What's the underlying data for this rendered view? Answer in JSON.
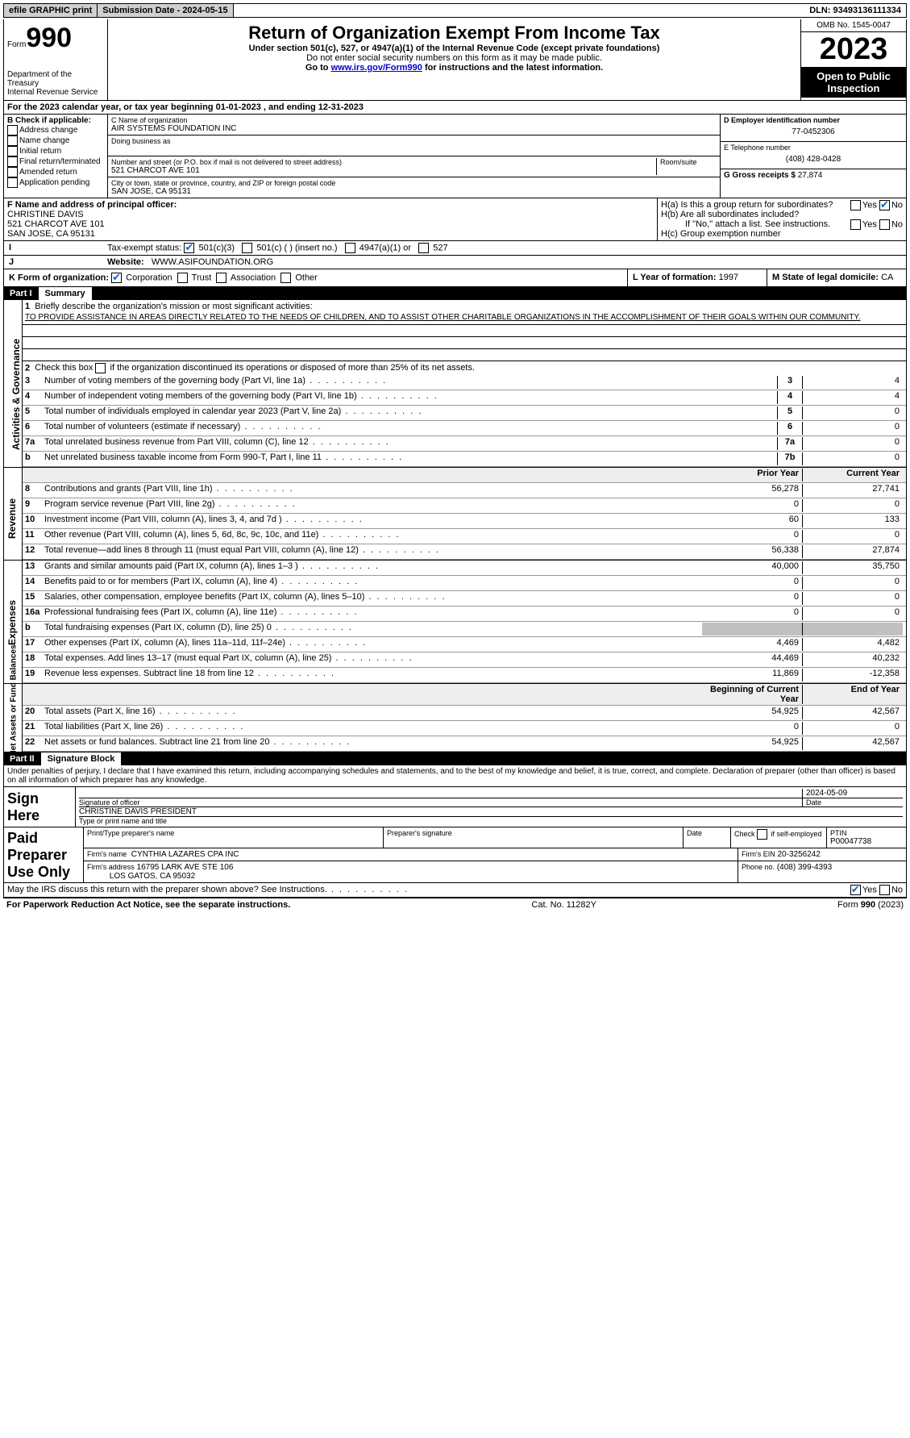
{
  "topbar": {
    "efile": "efile GRAPHIC print",
    "submission_label": "Submission Date - 2024-05-15",
    "dln": "DLN: 93493136111334"
  },
  "header": {
    "form_prefix": "Form",
    "form_number": "990",
    "dept": "Department of the Treasury",
    "irs": "Internal Revenue Service",
    "title": "Return of Organization Exempt From Income Tax",
    "sub1": "Under section 501(c), 527, or 4947(a)(1) of the Internal Revenue Code (except private foundations)",
    "sub2": "Do not enter social security numbers on this form as it may be made public.",
    "sub3_pre": "Go to ",
    "sub3_link": "www.irs.gov/Form990",
    "sub3_post": " for instructions and the latest information.",
    "omb": "OMB No. 1545-0047",
    "year": "2023",
    "open": "Open to Public Inspection"
  },
  "lineA": "For the 2023 calendar year, or tax year beginning 01-01-2023    , and ending 12-31-2023",
  "boxB": {
    "title": "B Check if applicable:",
    "items": [
      "Address change",
      "Name change",
      "Initial return",
      "Final return/terminated",
      "Amended return",
      "Application pending"
    ]
  },
  "boxC": {
    "name_lbl": "C Name of organization",
    "name": "AIR SYSTEMS FOUNDATION INC",
    "dba_lbl": "Doing business as",
    "addr_lbl": "Number and street (or P.O. box if mail is not delivered to street address)",
    "room_lbl": "Room/suite",
    "addr": "521 CHARCOT AVE 101",
    "city_lbl": "City or town, state or province, country, and ZIP or foreign postal code",
    "city": "SAN JOSE, CA  95131"
  },
  "boxD": {
    "lbl": "D Employer identification number",
    "val": "77-0452306"
  },
  "boxE": {
    "lbl": "E Telephone number",
    "val": "(408) 428-0428"
  },
  "boxG": {
    "lbl": "G Gross receipts $",
    "val": "27,874"
  },
  "boxF": {
    "lbl": "F  Name and address of principal officer:",
    "name": "CHRISTINE DAVIS",
    "addr1": "521 CHARCOT AVE 101",
    "addr2": "SAN JOSE, CA  95131"
  },
  "boxH": {
    "a": "H(a)  Is this a group return for subordinates?",
    "b": "H(b)  Are all subordinates included?",
    "b_note": "If \"No,\" attach a list. See instructions.",
    "c": "H(c)  Group exemption number",
    "yes": "Yes",
    "no": "No"
  },
  "boxI": {
    "lbl": "Tax-exempt status:",
    "o1": "501(c)(3)",
    "o2": "501(c) (  ) (insert no.)",
    "o3": "4947(a)(1) or",
    "o4": "527"
  },
  "boxJ": {
    "lbl": "Website:",
    "val": "WWW.ASIFOUNDATION.ORG"
  },
  "boxK": {
    "lbl": "K Form of organization:",
    "o1": "Corporation",
    "o2": "Trust",
    "o3": "Association",
    "o4": "Other"
  },
  "boxL": {
    "lbl": "L Year of formation:",
    "val": "1997"
  },
  "boxM": {
    "lbl": "M State of legal domicile:",
    "val": "CA"
  },
  "part1": {
    "num": "Part I",
    "title": "Summary",
    "side_labels": [
      "Activities & Governance",
      "Revenue",
      "Expenses",
      "Net Assets or Fund Balances"
    ],
    "l1_lbl": "Briefly describe the organization's mission or most significant activities:",
    "l1_txt": "TO PROVIDE ASSISTANCE IN AREAS DIRECTLY RELATED TO THE NEEDS OF CHILDREN, AND TO ASSIST OTHER CHARITABLE ORGANIZATIONS IN THE ACCOMPLISHMENT OF THEIR GOALS WITHIN OUR COMMUNITY.",
    "l2": "Check this box       if the organization discontinued its operations or disposed of more than 25% of its net assets.",
    "rows_ag": [
      {
        "n": "3",
        "t": "Number of voting members of the governing body (Part VI, line 1a)",
        "b": "3",
        "v": "4"
      },
      {
        "n": "4",
        "t": "Number of independent voting members of the governing body (Part VI, line 1b)",
        "b": "4",
        "v": "4"
      },
      {
        "n": "5",
        "t": "Total number of individuals employed in calendar year 2023 (Part V, line 2a)",
        "b": "5",
        "v": "0"
      },
      {
        "n": "6",
        "t": "Total number of volunteers (estimate if necessary)",
        "b": "6",
        "v": "0"
      },
      {
        "n": "7a",
        "t": "Total unrelated business revenue from Part VIII, column (C), line 12",
        "b": "7a",
        "v": "0"
      },
      {
        "n": "b",
        "t": "Net unrelated business taxable income from Form 990-T, Part I, line 11",
        "b": "7b",
        "v": "0"
      }
    ],
    "col_hdr": {
      "prior": "Prior Year",
      "current": "Current Year"
    },
    "rows_rev": [
      {
        "n": "8",
        "t": "Contributions and grants (Part VIII, line 1h)",
        "p": "56,278",
        "c": "27,741"
      },
      {
        "n": "9",
        "t": "Program service revenue (Part VIII, line 2g)",
        "p": "0",
        "c": "0"
      },
      {
        "n": "10",
        "t": "Investment income (Part VIII, column (A), lines 3, 4, and 7d )",
        "p": "60",
        "c": "133"
      },
      {
        "n": "11",
        "t": "Other revenue (Part VIII, column (A), lines 5, 6d, 8c, 9c, 10c, and 11e)",
        "p": "0",
        "c": "0"
      },
      {
        "n": "12",
        "t": "Total revenue—add lines 8 through 11 (must equal Part VIII, column (A), line 12)",
        "p": "56,338",
        "c": "27,874"
      }
    ],
    "rows_exp": [
      {
        "n": "13",
        "t": "Grants and similar amounts paid (Part IX, column (A), lines 1–3 )",
        "p": "40,000",
        "c": "35,750"
      },
      {
        "n": "14",
        "t": "Benefits paid to or for members (Part IX, column (A), line 4)",
        "p": "0",
        "c": "0"
      },
      {
        "n": "15",
        "t": "Salaries, other compensation, employee benefits (Part IX, column (A), lines 5–10)",
        "p": "0",
        "c": "0"
      },
      {
        "n": "16a",
        "t": "Professional fundraising fees (Part IX, column (A), line 11e)",
        "p": "0",
        "c": "0"
      },
      {
        "n": "b",
        "t": "Total fundraising expenses (Part IX, column (D), line 25) 0",
        "p": "",
        "c": "",
        "shaded": true
      },
      {
        "n": "17",
        "t": "Other expenses (Part IX, column (A), lines 11a–11d, 11f–24e)",
        "p": "4,469",
        "c": "4,482"
      },
      {
        "n": "18",
        "t": "Total expenses. Add lines 13–17 (must equal Part IX, column (A), line 25)",
        "p": "44,469",
        "c": "40,232"
      },
      {
        "n": "19",
        "t": "Revenue less expenses. Subtract line 18 from line 12",
        "p": "11,869",
        "c": "-12,358"
      }
    ],
    "col_hdr2": {
      "prior": "Beginning of Current Year",
      "current": "End of Year"
    },
    "rows_na": [
      {
        "n": "20",
        "t": "Total assets (Part X, line 16)",
        "p": "54,925",
        "c": "42,567"
      },
      {
        "n": "21",
        "t": "Total liabilities (Part X, line 26)",
        "p": "0",
        "c": "0"
      },
      {
        "n": "22",
        "t": "Net assets or fund balances. Subtract line 21 from line 20",
        "p": "54,925",
        "c": "42,567"
      }
    ]
  },
  "part2": {
    "num": "Part II",
    "title": "Signature Block",
    "decl": "Under penalties of perjury, I declare that I have examined this return, including accompanying schedules and statements, and to the best of my knowledge and belief, it is true, correct, and complete. Declaration of preparer (other than officer) is based on all information of which preparer has any knowledge.",
    "sign_here": "Sign Here",
    "date": "2024-05-09",
    "sig_of_officer": "Signature of officer",
    "officer_name": "CHRISTINE DAVIS  PRESIDENT",
    "type_name": "Type or print name and title",
    "date_lbl": "Date",
    "paid": "Paid Preparer Use Only",
    "prep_name_lbl": "Print/Type preparer's name",
    "prep_sig_lbl": "Preparer's signature",
    "check_self": "Check        if self-employed",
    "ptin_lbl": "PTIN",
    "ptin": "P00047738",
    "firm_name_lbl": "Firm's name",
    "firm_name": "CYNTHIA LAZARES CPA INC",
    "firm_ein_lbl": "Firm's EIN",
    "firm_ein": "20-3256242",
    "firm_addr_lbl": "Firm's address",
    "firm_addr1": "16795 LARK AVE STE 106",
    "firm_addr2": "LOS GATOS, CA  95032",
    "phone_lbl": "Phone no.",
    "phone": "(408) 399-4393",
    "discuss": "May the IRS discuss this return with the preparer shown above? See Instructions.",
    "yes": "Yes",
    "no": "No"
  },
  "footer": {
    "pra": "For Paperwork Reduction Act Notice, see the separate instructions.",
    "cat": "Cat. No. 11282Y",
    "form": "Form 990 (2023)"
  }
}
